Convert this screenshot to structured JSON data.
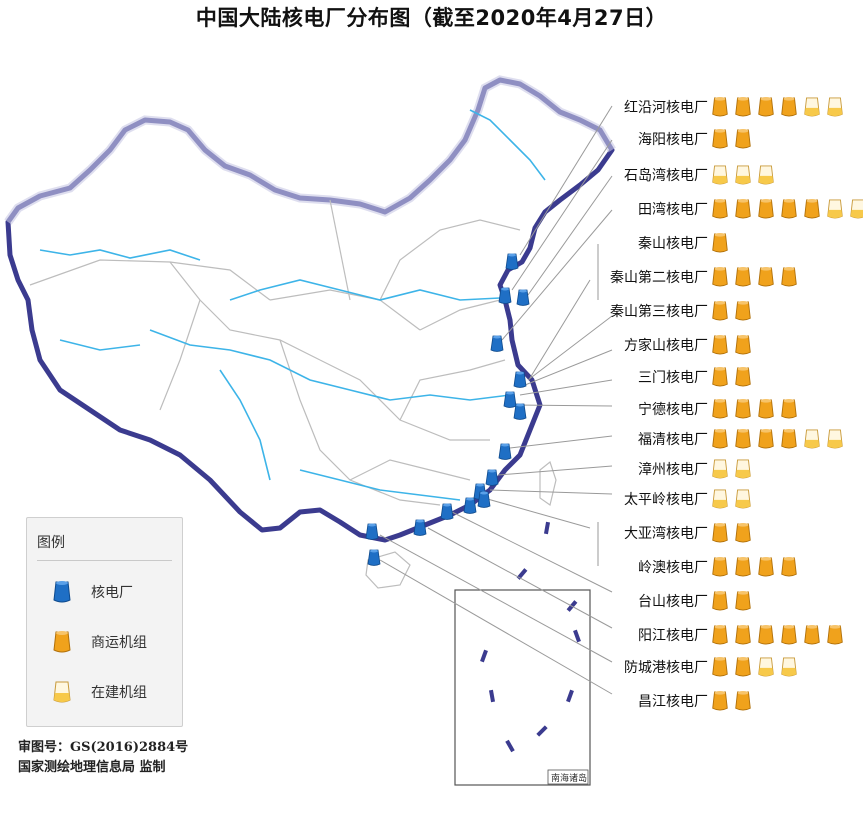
{
  "title": "中国大陆核电厂分布图（截至2020年4月27日）",
  "map": {
    "south_sea_inset_label": "南海诸岛",
    "colors": {
      "land": "#ffffff",
      "border": "#3a3a8a",
      "river": "#3db4e8",
      "province_border": "#bdbdbd",
      "label": "#e03030"
    }
  },
  "plants": [
    {
      "name": "红沿河核电厂",
      "operating": 4,
      "construction": 2
    },
    {
      "name": "海阳核电厂",
      "operating": 2,
      "construction": 0
    },
    {
      "name": "石岛湾核电厂",
      "operating": 0,
      "construction": 3
    },
    {
      "name": "田湾核电厂",
      "operating": 5,
      "construction": 2
    },
    {
      "name": "秦山核电厂",
      "operating": 1,
      "construction": 0
    },
    {
      "name": "秦山第二核电厂",
      "operating": 4,
      "construction": 0
    },
    {
      "name": "秦山第三核电厂",
      "operating": 2,
      "construction": 0
    },
    {
      "name": "方家山核电厂",
      "operating": 2,
      "construction": 0
    },
    {
      "name": "三门核电厂",
      "operating": 2,
      "construction": 0
    },
    {
      "name": "宁德核电厂",
      "operating": 4,
      "construction": 0
    },
    {
      "name": "福清核电厂",
      "operating": 4,
      "construction": 2
    },
    {
      "name": "漳州核电厂",
      "operating": 0,
      "construction": 2
    },
    {
      "name": "太平岭核电厂",
      "operating": 0,
      "construction": 2
    },
    {
      "name": "大亚湾核电厂",
      "operating": 2,
      "construction": 0
    },
    {
      "name": "岭澳核电厂",
      "operating": 4,
      "construction": 0
    },
    {
      "name": "台山核电厂",
      "operating": 2,
      "construction": 0
    },
    {
      "name": "阳江核电厂",
      "operating": 6,
      "construction": 0
    },
    {
      "name": "防城港核电厂",
      "operating": 2,
      "construction": 2
    },
    {
      "name": "昌江核电厂",
      "operating": 2,
      "construction": 0
    }
  ],
  "legend": {
    "title": "图例",
    "items": [
      {
        "icon": "nuclear-plant-icon",
        "label": "核电厂",
        "color": "#1f6fc5"
      },
      {
        "icon": "operating-unit-icon",
        "label": "商运机组",
        "color": "#f0a21c"
      },
      {
        "icon": "construction-unit-icon",
        "label": "在建机组",
        "color": "#f7c94a"
      }
    ]
  },
  "approval": {
    "number": "审图号：GS(2016)2884号",
    "supervisor": "国家测绘地理信息局 监制"
  }
}
